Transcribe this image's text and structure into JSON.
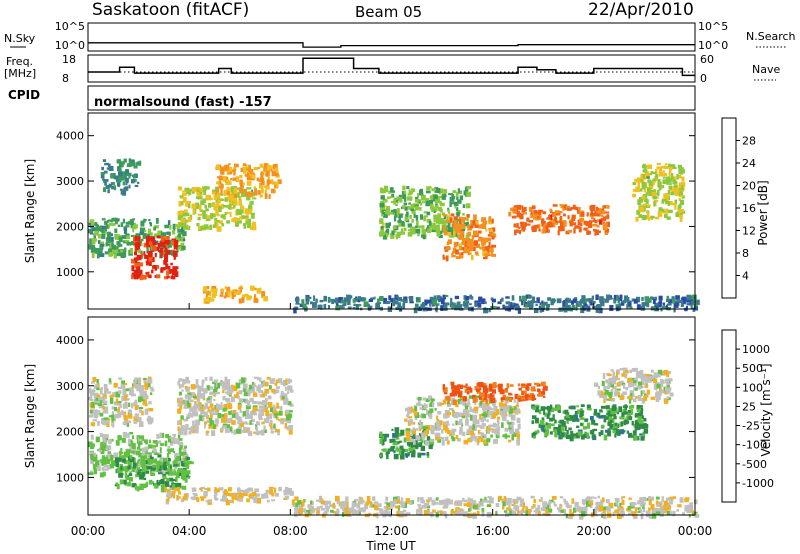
{
  "header": {
    "station": "Saskatoon (fitACF)",
    "beam": "Beam 05",
    "date": "22/Apr/2010"
  },
  "strip_labels": {
    "nsky": "N.Sky",
    "nsearch": "N.Search",
    "freq_line1": "Freq.",
    "freq_line2": "[MHz]",
    "nave": "Nave",
    "cpid": "CPID",
    "cpid_value": "normalsound (fast) -157",
    "noise_tick_top": "10^5",
    "noise_tick_bottom": "10^0",
    "freq_tick_top": "18",
    "freq_tick_bottom": "8",
    "nave_tick_top": "60",
    "nave_tick_bottom": "0"
  },
  "axes": {
    "ylabel": "Slant Range [km]",
    "xlabel": "Time UT",
    "y_ticks": [
      "1000",
      "2000",
      "3000",
      "4000"
    ],
    "x_ticks": [
      "00:00",
      "04:00",
      "08:00",
      "12:00",
      "16:00",
      "20:00",
      "00:00"
    ]
  },
  "colorbars": {
    "power": {
      "label": "Power [dB]",
      "ticks": [
        "4",
        "8",
        "12",
        "16",
        "20",
        "24",
        "28"
      ],
      "colors": [
        "#1f1fff",
        "#2a4aa8",
        "#3a7a8a",
        "#3c9a5a",
        "#8cc83c",
        "#f0c020",
        "#f59020",
        "#f06018",
        "#e02010"
      ]
    },
    "velocity": {
      "label": "Velocity [m s⁻¹]",
      "ticks": [
        "1000",
        "500",
        "100",
        "25",
        "-25",
        "-100",
        "-500",
        "-1000"
      ],
      "colors": [
        "#2050c0",
        "#3070a0",
        "#2f8a4a",
        "#60c040",
        "#c0c0c0",
        "#f0b020",
        "#f08020",
        "#f05010",
        "#e01010"
      ]
    }
  },
  "chart_data": [
    {
      "type": "line",
      "title": "N.Sky / N.Search",
      "x_range": [
        "00:00",
        "24:00"
      ],
      "ylim_log10": [
        0,
        5
      ],
      "segments": [
        {
          "start": "00:00",
          "end": "08:30",
          "level_log10": 1.3
        },
        {
          "start": "08:30",
          "end": "10:00",
          "level_log10": 0.4
        },
        {
          "start": "10:00",
          "end": "17:00",
          "level_log10": 0.7
        },
        {
          "start": "17:00",
          "end": "24:00",
          "level_log10": 0.9
        }
      ]
    },
    {
      "type": "line",
      "title": "Freq. [MHz] / Nave",
      "x_range": [
        "00:00",
        "24:00"
      ],
      "freq_ylim": [
        8,
        18
      ],
      "nave_ylim": [
        0,
        60
      ],
      "freq_steps": [
        {
          "start": "00:00",
          "end": "01:15",
          "freq": 11.5
        },
        {
          "start": "01:15",
          "end": "01:50",
          "freq": 13.5
        },
        {
          "start": "01:50",
          "end": "05:10",
          "freq": 11.0
        },
        {
          "start": "05:10",
          "end": "05:40",
          "freq": 13.0
        },
        {
          "start": "05:40",
          "end": "08:30",
          "freq": 11.0
        },
        {
          "start": "08:30",
          "end": "10:30",
          "freq": 17.5
        },
        {
          "start": "10:30",
          "end": "11:30",
          "freq": 13.0
        },
        {
          "start": "11:30",
          "end": "17:00",
          "freq": 11.0
        },
        {
          "start": "17:00",
          "end": "17:45",
          "freq": 13.5
        },
        {
          "start": "17:45",
          "end": "18:30",
          "freq": 12.5
        },
        {
          "start": "18:30",
          "end": "20:00",
          "freq": 11.0
        },
        {
          "start": "20:00",
          "end": "23:30",
          "freq": 13.0
        },
        {
          "start": "23:30",
          "end": "24:00",
          "freq": 10.0
        }
      ],
      "nave_reference": 21
    },
    {
      "type": "heatmap",
      "title": "Power [dB]",
      "xlabel": "Time UT",
      "ylabel": "Slant Range [km]",
      "x_range_hours": [
        0,
        24
      ],
      "ylim": [
        180,
        4500
      ],
      "value_range": [
        0,
        30
      ],
      "regions": [
        {
          "t_start": 0.0,
          "t_end": 3.8,
          "r_start": 1400,
          "r_end": 2200,
          "value": 12
        },
        {
          "t_start": 1.7,
          "t_end": 3.5,
          "r_start": 900,
          "r_end": 1800,
          "value": 28
        },
        {
          "t_start": 0.5,
          "t_end": 2.0,
          "r_start": 2800,
          "r_end": 3500,
          "value": 10
        },
        {
          "t_start": 3.5,
          "t_end": 6.5,
          "r_start": 2000,
          "r_end": 2900,
          "value": 16
        },
        {
          "t_start": 5.0,
          "t_end": 7.5,
          "r_start": 2700,
          "r_end": 3400,
          "value": 20
        },
        {
          "t_start": 4.5,
          "t_end": 7.0,
          "r_start": 400,
          "r_end": 700,
          "value": 20
        },
        {
          "t_start": 11.5,
          "t_end": 15.0,
          "r_start": 1800,
          "r_end": 2900,
          "value": 14
        },
        {
          "t_start": 14.0,
          "t_end": 16.0,
          "r_start": 1300,
          "r_end": 2300,
          "value": 22
        },
        {
          "t_start": 16.5,
          "t_end": 20.5,
          "r_start": 1900,
          "r_end": 2500,
          "value": 24
        },
        {
          "t_start": 21.5,
          "t_end": 23.5,
          "r_start": 2200,
          "r_end": 3400,
          "value": 16
        },
        {
          "t_start": 8.0,
          "t_end": 24.0,
          "r_start": 200,
          "r_end": 500,
          "value": 8
        }
      ]
    },
    {
      "type": "heatmap",
      "title": "Velocity [m s⁻¹]",
      "xlabel": "Time UT",
      "ylabel": "Slant Range [km]",
      "x_range_hours": [
        0,
        24
      ],
      "ylim": [
        180,
        4500
      ],
      "value_range": [
        -1000,
        1000
      ],
      "regions": [
        {
          "t_start": 0.0,
          "t_end": 3.8,
          "r_start": 1100,
          "r_end": 2000,
          "value": -150
        },
        {
          "t_start": 1.0,
          "t_end": 4.0,
          "r_start": 800,
          "r_end": 1500,
          "value": -300
        },
        {
          "t_start": 0.0,
          "t_end": 2.5,
          "r_start": 2200,
          "r_end": 3200,
          "value": 0
        },
        {
          "t_start": 3.5,
          "t_end": 8.0,
          "r_start": 2000,
          "r_end": 3200,
          "value": 0
        },
        {
          "t_start": 3.0,
          "t_end": 8.0,
          "r_start": 500,
          "r_end": 800,
          "value": 80
        },
        {
          "t_start": 11.5,
          "t_end": 13.5,
          "r_start": 1500,
          "r_end": 2100,
          "value": -400
        },
        {
          "t_start": 12.5,
          "t_end": 17.0,
          "r_start": 1800,
          "r_end": 2800,
          "value": 0
        },
        {
          "t_start": 14.0,
          "t_end": 18.0,
          "r_start": 2700,
          "r_end": 3100,
          "value": 600
        },
        {
          "t_start": 17.5,
          "t_end": 22.0,
          "r_start": 1900,
          "r_end": 2600,
          "value": -400
        },
        {
          "t_start": 20.0,
          "t_end": 23.0,
          "r_start": 2700,
          "r_end": 3400,
          "value": 0
        },
        {
          "t_start": 8.0,
          "t_end": 24.0,
          "r_start": 200,
          "r_end": 600,
          "value": 20
        }
      ]
    }
  ]
}
